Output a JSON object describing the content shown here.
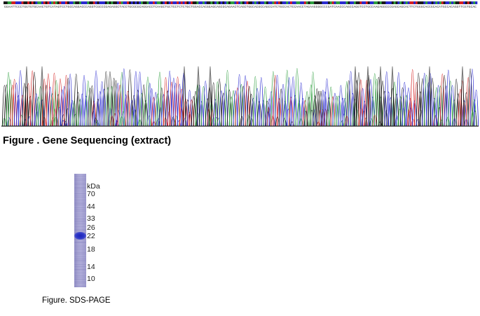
{
  "sequencing": {
    "caption": "Figure . Gene Sequencing (extract)",
    "trace_colors": {
      "A": "#2e9e3e",
      "C": "#2a2ad0",
      "G": "#1a1a1a",
      "T": "#d42020"
    },
    "base_calls": "GGAATTCCCTGGTGTGCAACTGTCATAGTCCTGCCAGGACCCAGGTCGCCCGAGAGGCTACCTGCGCGCAGGACCTCAAGCTGCTCCTCTCTGCTGGACCACGGAGCAGCGCAGAACTCAGCTGGCACGCCAGCCATCTGCCACTCCAACCTAGAAGGGGCCCGATCAACCCAGCCAGGTCCTGCCAAGAGGCCCGAGCAGCACTTCTGGGCACCGCACATGCCACAGGTTCGTGCAC"
  },
  "sds_page": {
    "caption": "Figure. SDS-PAGE",
    "unit_label": "kDa",
    "markers": [
      "70",
      "44",
      "33",
      "26",
      "22",
      "18",
      "14",
      "10"
    ],
    "band_marker": "22"
  }
}
